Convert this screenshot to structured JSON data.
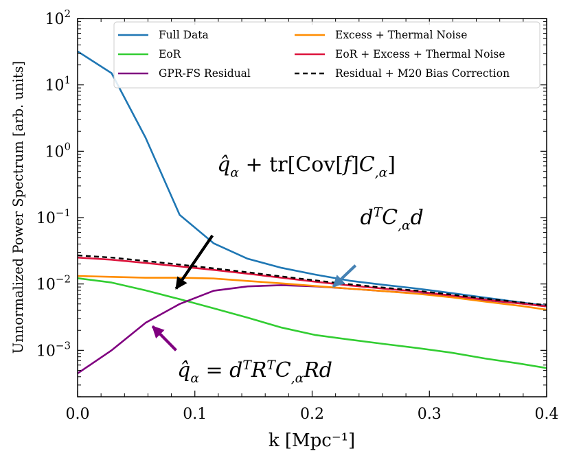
{
  "chart_data": {
    "type": "line",
    "xlabel": "k [Mpc⁻¹]",
    "ylabel": "Unnormalized Power Spectrum [arb. units]",
    "xlim": [
      0.0,
      0.4
    ],
    "ylim_log10": [
      -3.7,
      2.0
    ],
    "yscale": "log",
    "x_ticks": [
      0.0,
      0.1,
      0.2,
      0.3,
      0.4
    ],
    "x_tick_labels": [
      "0.0",
      "0.1",
      "0.2",
      "0.3",
      "0.4"
    ],
    "y_ticks_log10": [
      -3,
      -2,
      -1,
      0,
      1,
      2
    ],
    "y_tick_bases": [
      "10",
      "10",
      "10",
      "10",
      "10",
      "10"
    ],
    "y_tick_exponents": [
      "−3",
      "−2",
      "−1",
      "0",
      "1",
      "2"
    ],
    "legend_position": "top",
    "x": [
      0.0,
      0.029,
      0.058,
      0.087,
      0.116,
      0.145,
      0.174,
      0.203,
      0.232,
      0.261,
      0.29,
      0.319,
      0.348,
      0.377,
      0.4
    ],
    "series": [
      {
        "name": "Full Data",
        "color": "#1f77b4",
        "dash": "none",
        "values": [
          32,
          15,
          1.6,
          0.11,
          0.041,
          0.024,
          0.0175,
          0.0138,
          0.0112,
          0.0097,
          0.0085,
          0.0073,
          0.0062,
          0.0053,
          0.0047
        ]
      },
      {
        "name": "EoR",
        "color": "#32cd32",
        "dash": "none",
        "values": [
          0.0122,
          0.0105,
          0.008,
          0.0059,
          0.0043,
          0.0031,
          0.0022,
          0.0017,
          0.00145,
          0.00125,
          0.00108,
          0.00092,
          0.00075,
          0.00063,
          0.00054
        ]
      },
      {
        "name": "GPR-FS Residual",
        "color": "#800080",
        "dash": "none",
        "values": [
          0.00045,
          0.001,
          0.0026,
          0.005,
          0.0079,
          0.0092,
          0.0096,
          0.0092,
          0.0085,
          0.0078,
          0.0072,
          0.0065,
          0.0057,
          0.0051,
          0.0046
        ]
      },
      {
        "name": "Excess + Thermal Noise",
        "color": "#ff8c00",
        "dash": "none",
        "values": [
          0.0132,
          0.0128,
          0.0124,
          0.0124,
          0.0121,
          0.0111,
          0.0102,
          0.0093,
          0.0085,
          0.0078,
          0.0071,
          0.0063,
          0.0054,
          0.0047,
          0.0041
        ]
      },
      {
        "name": "EoR + Excess + Thermal Noise",
        "color": "#dc143c",
        "dash": "none",
        "values": [
          0.025,
          0.0232,
          0.0207,
          0.0184,
          0.0163,
          0.0143,
          0.0124,
          0.0108,
          0.0095,
          0.0085,
          0.0077,
          0.0067,
          0.0058,
          0.0051,
          0.0046
        ]
      },
      {
        "name": "Residual + M20 Bias Correction",
        "color": "#000000",
        "dash": "7,5",
        "values": [
          0.027,
          0.025,
          0.0222,
          0.0196,
          0.0172,
          0.015,
          0.013,
          0.0113,
          0.0099,
          0.0088,
          0.0079,
          0.0069,
          0.006,
          0.0053,
          0.0048
        ]
      }
    ],
    "annotations": [
      {
        "id": "cov",
        "label": "q̂α + tr[Cov[f]C,α]",
        "color": "#000000",
        "text_x": 0.119,
        "text_y_log10": -0.3,
        "arrow_from": [
          0.115,
          -1.27
        ],
        "arrow_to": [
          0.084,
          -2.07
        ]
      },
      {
        "id": "dcd",
        "label": "dᵀC,αd",
        "color": "#4682b4",
        "text_x": 0.241,
        "text_y_log10": -1.1,
        "arrow_from": [
          0.237,
          -1.72
        ],
        "arrow_to": [
          0.218,
          -2.04
        ]
      },
      {
        "id": "qhat",
        "label": "q̂α = dᵀRᵀC,αRd",
        "color": "#800080",
        "text_x": 0.085,
        "text_y_log10": -3.4,
        "arrow_from": [
          0.084,
          -3.0
        ],
        "arrow_to": [
          0.064,
          -2.64
        ]
      }
    ]
  }
}
